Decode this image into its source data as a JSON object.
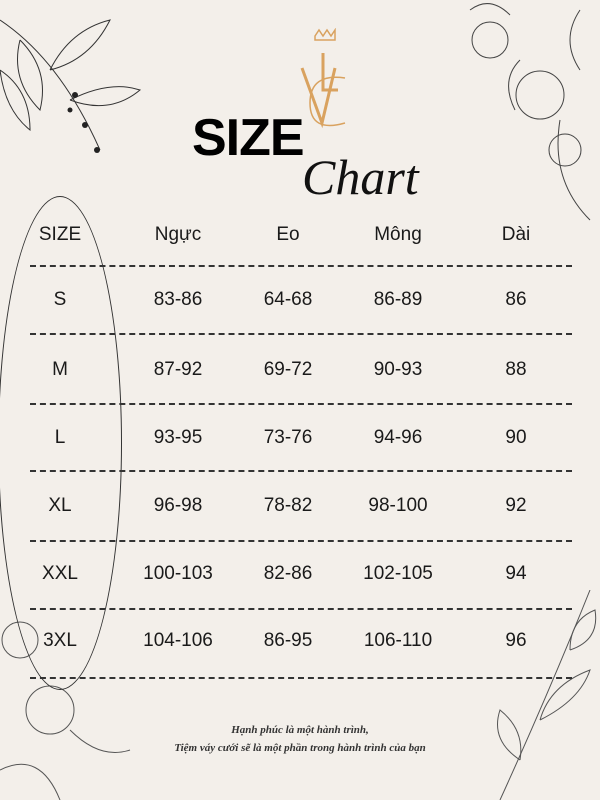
{
  "logo": {
    "letters": "VLC",
    "color": "#d9a25f"
  },
  "title": {
    "size": "SIZE",
    "chart": "Chart"
  },
  "table": {
    "headers": [
      "SIZE",
      "Ngực",
      "Eo",
      "Mông",
      "Dài"
    ],
    "rows": [
      [
        "S",
        "83-86",
        "64-68",
        "86-89",
        "86"
      ],
      [
        "M",
        "87-92",
        "69-72",
        "90-93",
        "88"
      ],
      [
        "L",
        "93-95",
        "73-76",
        "94-96",
        "90"
      ],
      [
        "XL",
        "96-98",
        "78-82",
        "98-100",
        "92"
      ],
      [
        "XXL",
        "100-103",
        "82-86",
        "102-105",
        "94"
      ],
      [
        "3XL",
        "104-106",
        "86-95",
        "106-110",
        "96"
      ]
    ]
  },
  "footer": {
    "line1": "Hạnh phúc là một hành trình,",
    "line2": "Tiệm váy cưới sẽ là một phần trong hành trình của bạn"
  },
  "colors": {
    "background": "#f3efea",
    "text": "#1a1a1a",
    "gold": "#d9a25f"
  }
}
